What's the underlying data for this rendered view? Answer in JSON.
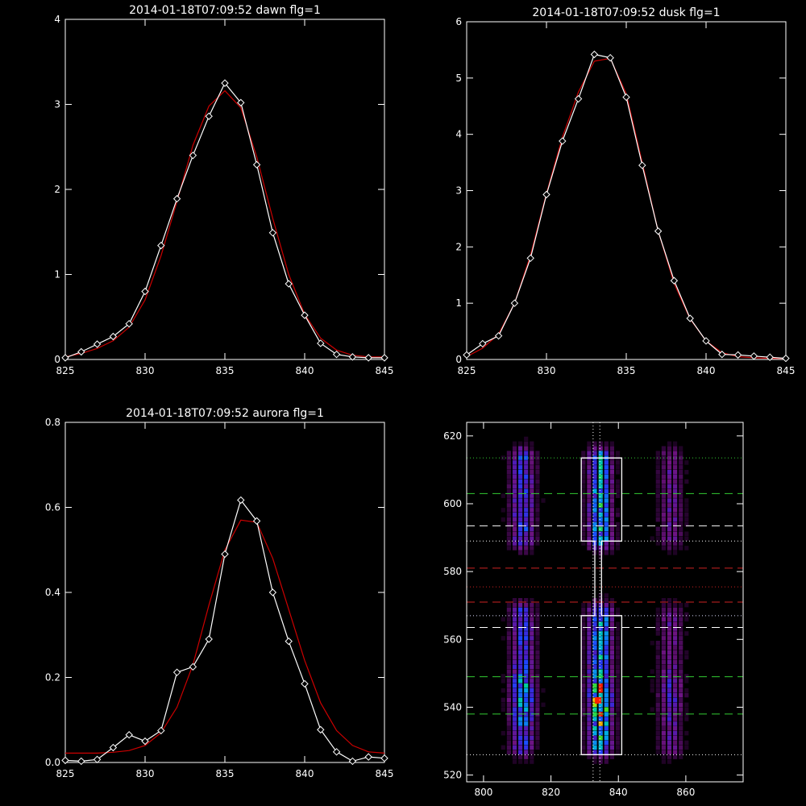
{
  "chart_data": [
    {
      "type": "line",
      "title": "2014-01-18T07:09:52 dawn flg=1",
      "xlim": [
        825,
        845
      ],
      "ylim": [
        0,
        4
      ],
      "xticks": [
        "825",
        "830",
        "835",
        "840",
        "845"
      ],
      "yticks": [
        "0",
        "1",
        "2",
        "3",
        "4"
      ],
      "series": [
        {
          "color": "#ffffff",
          "marker": "diamond",
          "x": [
            825,
            826,
            827,
            828,
            829,
            830,
            831,
            832,
            833,
            834,
            835,
            836,
            837,
            838,
            839,
            840,
            841,
            842,
            843,
            844,
            845
          ],
          "y": [
            0.02,
            0.09,
            0.18,
            0.27,
            0.42,
            0.8,
            1.34,
            1.89,
            2.4,
            2.86,
            3.25,
            3.02,
            2.29,
            1.49,
            0.89,
            0.52,
            0.19,
            0.06,
            0.03,
            0.02,
            0.02
          ]
        },
        {
          "color": "#cc0000",
          "marker": "none",
          "x": [
            825,
            826,
            827,
            828,
            829,
            830,
            831,
            832,
            833,
            834,
            835,
            836,
            837,
            838,
            839,
            840,
            841,
            842,
            843,
            844,
            845
          ],
          "y": [
            0.03,
            0.07,
            0.13,
            0.22,
            0.38,
            0.7,
            1.22,
            1.86,
            2.52,
            2.98,
            3.16,
            2.96,
            2.38,
            1.66,
            1.0,
            0.53,
            0.25,
            0.11,
            0.05,
            0.03,
            0.03
          ]
        }
      ]
    },
    {
      "type": "line",
      "title": "2014-01-18T07:09:52 dusk flg=1",
      "xlim": [
        825,
        845
      ],
      "ylim": [
        0,
        6
      ],
      "xticks": [
        "825",
        "830",
        "835",
        "840",
        "845"
      ],
      "yticks": [
        "0",
        "1",
        "2",
        "3",
        "4",
        "5",
        "6"
      ],
      "series": [
        {
          "color": "#ffffff",
          "marker": "diamond",
          "x": [
            825,
            826,
            827,
            828,
            829,
            830,
            831,
            832,
            833,
            834,
            835,
            836,
            837,
            838,
            839,
            840,
            841,
            842,
            843,
            844,
            845
          ],
          "y": [
            0.08,
            0.28,
            0.42,
            1.0,
            1.8,
            2.93,
            3.88,
            4.63,
            5.42,
            5.36,
            4.66,
            3.45,
            2.28,
            1.4,
            0.73,
            0.33,
            0.09,
            0.08,
            0.06,
            0.04,
            0.02
          ]
        },
        {
          "color": "#cc0000",
          "marker": "none",
          "x": [
            825,
            826,
            827,
            828,
            829,
            830,
            831,
            832,
            833,
            834,
            835,
            836,
            837,
            838,
            839,
            840,
            841,
            842,
            843,
            844,
            845
          ],
          "y": [
            0.05,
            0.2,
            0.45,
            1.0,
            1.85,
            2.95,
            3.95,
            4.75,
            5.3,
            5.35,
            4.72,
            3.5,
            2.28,
            1.35,
            0.72,
            0.33,
            0.12,
            0.05,
            0.03,
            0.02,
            0.02
          ]
        }
      ]
    },
    {
      "type": "line",
      "title": "2014-01-18T07:09:52 aurora flg=1",
      "xlim": [
        825,
        845
      ],
      "ylim": [
        0,
        0.8
      ],
      "xticks": [
        "825",
        "830",
        "835",
        "840",
        "845"
      ],
      "yticks": [
        "0.0",
        "0.2",
        "0.4",
        "0.6",
        "0.8"
      ],
      "series": [
        {
          "color": "#ffffff",
          "marker": "diamond",
          "x": [
            825,
            826,
            827,
            828,
            829,
            830,
            831,
            832,
            833,
            834,
            835,
            836,
            837,
            838,
            839,
            840,
            841,
            842,
            843,
            844,
            845
          ],
          "y": [
            0.005,
            0.003,
            0.007,
            0.035,
            0.065,
            0.05,
            0.075,
            0.212,
            0.225,
            0.29,
            0.49,
            0.617,
            0.568,
            0.4,
            0.285,
            0.185,
            0.077,
            0.025,
            0.003,
            0.013,
            0.01
          ]
        },
        {
          "color": "#cc0000",
          "marker": "none",
          "x": [
            825,
            826,
            827,
            828,
            829,
            830,
            831,
            832,
            833,
            834,
            835,
            836,
            837,
            838,
            839,
            840,
            841,
            842,
            843,
            844,
            845
          ],
          "y": [
            0.022,
            0.022,
            0.022,
            0.024,
            0.028,
            0.04,
            0.07,
            0.13,
            0.23,
            0.37,
            0.5,
            0.57,
            0.565,
            0.48,
            0.36,
            0.24,
            0.14,
            0.075,
            0.04,
            0.025,
            0.022
          ]
        }
      ]
    },
    {
      "type": "heatmap",
      "title": "",
      "xlim": [
        795,
        877
      ],
      "ylim": [
        518,
        624
      ],
      "xticks": [
        "800",
        "820",
        "840",
        "860"
      ],
      "yticks": [
        "520",
        "540",
        "560",
        "580",
        "600",
        "620"
      ],
      "column_centers": [
        811,
        834,
        855
      ],
      "column_strength": [
        0.7,
        1.0,
        0.35
      ],
      "bands": [
        {
          "y_range": [
            589,
            613
          ],
          "color": "blob"
        },
        {
          "y_range": [
            528,
            567
          ],
          "color": "blob"
        }
      ],
      "peak": {
        "x": 834,
        "y": 542
      },
      "hlines": [
        {
          "y": 613.5,
          "color": "#33cc33",
          "style": "dotted"
        },
        {
          "y": 603,
          "color": "#33cc33",
          "style": "dashed"
        },
        {
          "y": 593.5,
          "color": "#ffffff",
          "style": "dashed"
        },
        {
          "y": 589,
          "color": "#ffffff",
          "style": "dotted"
        },
        {
          "y": 581,
          "color": "#cc2222",
          "style": "dashed"
        },
        {
          "y": 575.5,
          "color": "#cc2222",
          "style": "dotted"
        },
        {
          "y": 571,
          "color": "#cc2222",
          "style": "dashed"
        },
        {
          "y": 567,
          "color": "#ddddff",
          "style": "dotted"
        },
        {
          "y": 563.5,
          "color": "#ffffff",
          "style": "dashed"
        },
        {
          "y": 549,
          "color": "#33cc33",
          "style": "dashed"
        },
        {
          "y": 538,
          "color": "#33cc33",
          "style": "dashed"
        },
        {
          "y": 526,
          "color": "#ffffff",
          "style": "dotted"
        }
      ],
      "vlines": [
        {
          "x": 832.5,
          "color": "#ffffff",
          "style": "dotted"
        },
        {
          "x": 834.5,
          "color": "#ffffff",
          "style": "dotted"
        }
      ],
      "box_outline": {
        "x_outer": [
          829,
          841
        ],
        "x_inner": [
          833,
          835
        ],
        "y_top": [
          589,
          613.5
        ],
        "y_bottom": [
          526,
          567
        ]
      }
    }
  ]
}
